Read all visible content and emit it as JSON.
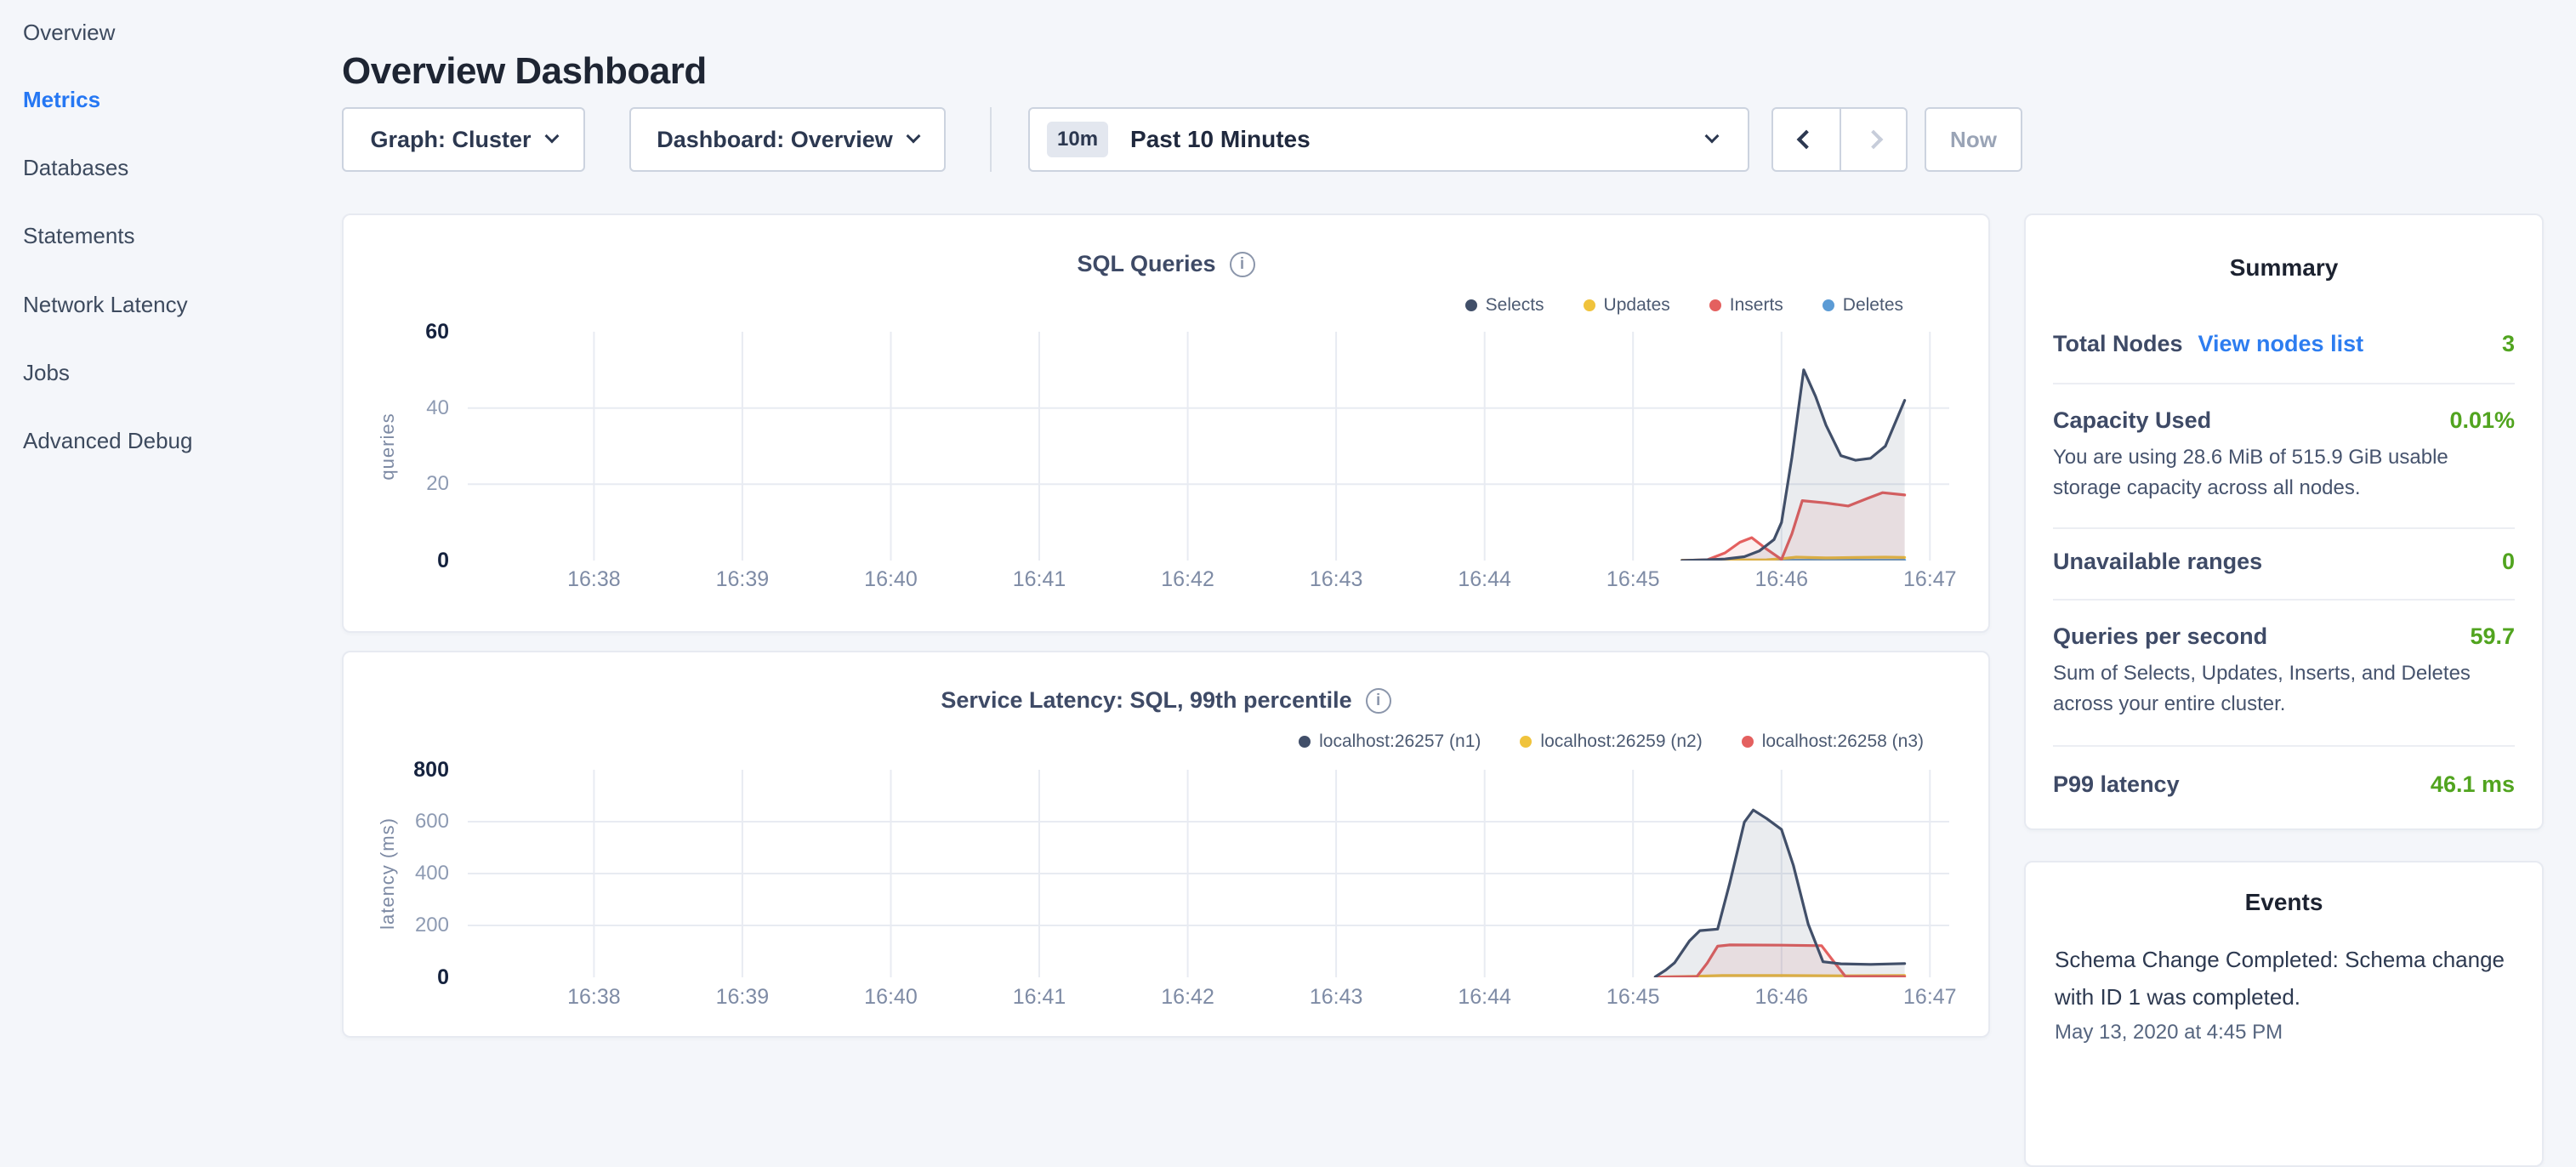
{
  "sidebar": {
    "items": [
      {
        "label": "Overview"
      },
      {
        "label": "Metrics"
      },
      {
        "label": "Databases"
      },
      {
        "label": "Statements"
      },
      {
        "label": "Network Latency"
      },
      {
        "label": "Jobs"
      },
      {
        "label": "Advanced Debug"
      }
    ],
    "active_item": "Metrics",
    "active_color": "#2577f3"
  },
  "header": {
    "title": "Overview Dashboard"
  },
  "controls": {
    "graph_dropdown": {
      "label": "Graph: Cluster"
    },
    "dashboard_dropdown": {
      "label": "Dashboard: Overview"
    },
    "time_picker": {
      "badge": "10m",
      "label": "Past 10 Minutes"
    },
    "now_button": {
      "label": "Now"
    }
  },
  "summary": {
    "title": "Summary",
    "rows": [
      {
        "label": "Total Nodes",
        "link": "View nodes list",
        "value": "3"
      },
      {
        "label": "Capacity Used",
        "value": "0.01%",
        "description": "You are using 28.6 MiB of 515.9 GiB usable storage capacity across all nodes."
      },
      {
        "label": "Unavailable ranges",
        "value": "0"
      },
      {
        "label": "Queries per second",
        "value": "59.7",
        "description": "Sum of Selects, Updates, Inserts, and Deletes across your entire cluster."
      },
      {
        "label": "P99 latency",
        "value": "46.1 ms"
      }
    ],
    "value_color": "#51a41f",
    "link_color": "#2d7df0"
  },
  "events": {
    "title": "Events",
    "items": [
      {
        "message": "Schema Change Completed: Schema change with ID 1 was completed.",
        "timestamp": "May 13, 2020 at 4:45 PM"
      }
    ]
  },
  "chart_data": [
    {
      "type": "area",
      "title": "SQL Queries",
      "ylabel": "queries",
      "ylim": [
        0,
        60
      ],
      "y_ticks": [
        0,
        20,
        40,
        60
      ],
      "y_gridlines": [
        20,
        40
      ],
      "x_domain": [
        37.15,
        47.13
      ],
      "x_ticks": [
        {
          "t": 38,
          "label": "16:38"
        },
        {
          "t": 39,
          "label": "16:39"
        },
        {
          "t": 40,
          "label": "16:40"
        },
        {
          "t": 41,
          "label": "16:41"
        },
        {
          "t": 42,
          "label": "16:42"
        },
        {
          "t": 43,
          "label": "16:43"
        },
        {
          "t": 44,
          "label": "16:44"
        },
        {
          "t": 45,
          "label": "16:45"
        },
        {
          "t": 46,
          "label": "16:46"
        },
        {
          "t": 47,
          "label": "16:47"
        }
      ],
      "grid": true,
      "legend_position": "top-right",
      "series": [
        {
          "name": "Selects",
          "color": "#414f69",
          "fill": "rgba(65,79,105,0.11)",
          "z": 4,
          "points": [
            [
              45.33,
              0
            ],
            [
              45.5,
              0.2
            ],
            [
              45.62,
              0.4
            ],
            [
              45.75,
              1
            ],
            [
              45.85,
              2.5
            ],
            [
              45.95,
              5.5
            ],
            [
              46.0,
              10
            ],
            [
              46.07,
              27
            ],
            [
              46.15,
              50
            ],
            [
              46.23,
              43
            ],
            [
              46.3,
              35.5
            ],
            [
              46.4,
              27.5
            ],
            [
              46.5,
              26.3
            ],
            [
              46.6,
              26.8
            ],
            [
              46.7,
              30
            ],
            [
              46.83,
              42
            ]
          ]
        },
        {
          "name": "Updates",
          "color": "#f0c33c",
          "fill": "rgba(240,195,60,0.10)",
          "z": 2,
          "points": [
            [
              45.33,
              0.1
            ],
            [
              45.9,
              0.2
            ],
            [
              46.0,
              0.5
            ],
            [
              46.1,
              0.9
            ],
            [
              46.3,
              0.7
            ],
            [
              46.5,
              0.8
            ],
            [
              46.7,
              0.9
            ],
            [
              46.83,
              0.8
            ]
          ]
        },
        {
          "name": "Inserts",
          "color": "#e4605f",
          "fill": "rgba(228,96,95,0.10)",
          "z": 3,
          "points": [
            [
              45.33,
              0
            ],
            [
              45.5,
              0.2
            ],
            [
              45.62,
              2
            ],
            [
              45.72,
              4.8
            ],
            [
              45.8,
              6
            ],
            [
              45.9,
              3
            ],
            [
              46.0,
              0.3
            ],
            [
              46.07,
              7
            ],
            [
              46.14,
              15.7
            ],
            [
              46.3,
              15.1
            ],
            [
              46.45,
              14.3
            ],
            [
              46.58,
              16.3
            ],
            [
              46.68,
              17.8
            ],
            [
              46.83,
              17.2
            ]
          ]
        },
        {
          "name": "Deletes",
          "color": "#5b9bd5",
          "fill": "rgba(91,155,213,0.10)",
          "z": 1,
          "points": [
            [
              45.33,
              0.1
            ],
            [
              46.83,
              0.1
            ]
          ]
        }
      ]
    },
    {
      "type": "area",
      "title": "Service Latency: SQL, 99th percentile",
      "ylabel": "latency (ms)",
      "ylim": [
        0,
        800
      ],
      "y_ticks": [
        0,
        200,
        400,
        600,
        800
      ],
      "y_gridlines": [
        200,
        400,
        600
      ],
      "x_domain": [
        37.15,
        47.13
      ],
      "x_ticks": [
        {
          "t": 38,
          "label": "16:38"
        },
        {
          "t": 39,
          "label": "16:39"
        },
        {
          "t": 40,
          "label": "16:40"
        },
        {
          "t": 41,
          "label": "16:41"
        },
        {
          "t": 42,
          "label": "16:42"
        },
        {
          "t": 43,
          "label": "16:43"
        },
        {
          "t": 44,
          "label": "16:44"
        },
        {
          "t": 45,
          "label": "16:45"
        },
        {
          "t": 46,
          "label": "16:46"
        },
        {
          "t": 47,
          "label": "16:47"
        }
      ],
      "grid": true,
      "legend_position": "top-right",
      "series": [
        {
          "name": "localhost:26257 (n1)",
          "color": "#414f69",
          "fill": "rgba(65,79,105,0.11)",
          "z": 3,
          "points": [
            [
              45.15,
              2
            ],
            [
              45.22,
              28
            ],
            [
              45.28,
              56
            ],
            [
              45.38,
              140
            ],
            [
              45.45,
              180
            ],
            [
              45.57,
              186
            ],
            [
              45.65,
              360
            ],
            [
              45.75,
              598
            ],
            [
              45.81,
              645
            ],
            [
              45.9,
              612
            ],
            [
              46.0,
              570
            ],
            [
              46.08,
              432
            ],
            [
              46.18,
              205
            ],
            [
              46.28,
              60
            ],
            [
              46.4,
              52
            ],
            [
              46.6,
              50
            ],
            [
              46.83,
              53
            ]
          ]
        },
        {
          "name": "localhost:26259 (n2)",
          "color": "#f0c33c",
          "fill": "rgba(240,195,60,0.10)",
          "z": 1,
          "points": [
            [
              45.15,
              1
            ],
            [
              45.4,
              4
            ],
            [
              45.6,
              7
            ],
            [
              46.0,
              7
            ],
            [
              46.4,
              6
            ],
            [
              46.83,
              7
            ]
          ]
        },
        {
          "name": "localhost:26258 (n3)",
          "color": "#e4605f",
          "fill": "rgba(228,96,95,0.10)",
          "z": 2,
          "points": [
            [
              45.15,
              1
            ],
            [
              45.43,
              3
            ],
            [
              45.5,
              55
            ],
            [
              45.57,
              120
            ],
            [
              45.65,
              125
            ],
            [
              46.0,
              124
            ],
            [
              46.27,
              122
            ],
            [
              46.35,
              62
            ],
            [
              46.43,
              4
            ],
            [
              46.83,
              3
            ]
          ]
        }
      ]
    }
  ]
}
